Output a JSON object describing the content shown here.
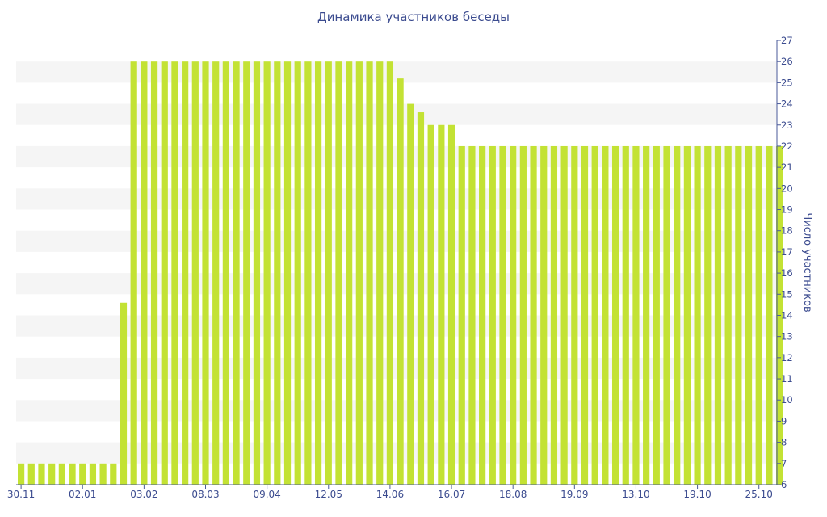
{
  "chart_data": {
    "type": "bar",
    "title": "Динамика участников беседы",
    "xlabel": "",
    "ylabel": "Число участников",
    "ylim": [
      6,
      27
    ],
    "yticks": [
      6,
      7,
      8,
      9,
      10,
      11,
      12,
      13,
      14,
      15,
      16,
      17,
      18,
      19,
      20,
      21,
      22,
      23,
      24,
      25,
      26,
      27
    ],
    "y_axis_side": "right",
    "grid": "alternating horizontal bands",
    "x_tick_labels": [
      "30.11",
      "02.01",
      "03.02",
      "08.03",
      "09.04",
      "12.05",
      "14.06",
      "16.07",
      "18.08",
      "19.09",
      "13.10",
      "19.10",
      "25.10"
    ],
    "x_tick_bar_index": [
      0,
      6,
      12,
      18,
      24,
      30,
      36,
      42,
      48,
      54,
      60,
      66,
      72
    ],
    "values": [
      7,
      7,
      7,
      7,
      7,
      7,
      7,
      7,
      7,
      7,
      14.6,
      26,
      26,
      26,
      26,
      26,
      26,
      26,
      26,
      26,
      26,
      26,
      26,
      26,
      26,
      26,
      26,
      26,
      26,
      26,
      26,
      26,
      26,
      26,
      26,
      26,
      26,
      25.2,
      24,
      23.6,
      23,
      23,
      23,
      22,
      22,
      22,
      22,
      22,
      22,
      22,
      22,
      22,
      22,
      22,
      22,
      22,
      22,
      22,
      22,
      22,
      22,
      22,
      22,
      22,
      22,
      22,
      22,
      22,
      22,
      22,
      22,
      22,
      22,
      22,
      22
    ],
    "colors": {
      "bar": "#c3e234",
      "band": "#f5f5f5",
      "text": "#3b4b8f",
      "axis": "#4a5a9a"
    }
  }
}
